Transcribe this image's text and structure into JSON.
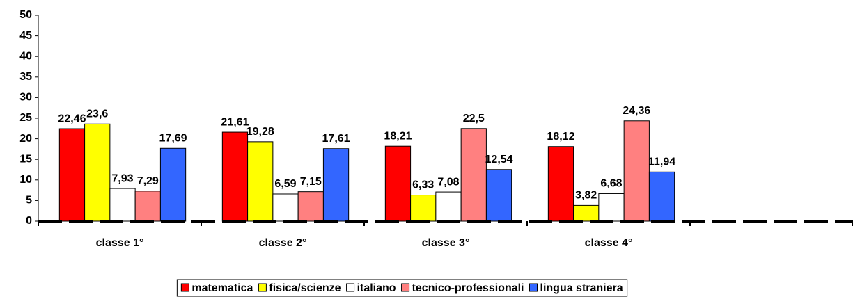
{
  "chart_data": {
    "type": "bar",
    "categories": [
      "classe 1°",
      "classe 2°",
      "classe 3°",
      "classe 4°",
      null
    ],
    "series": [
      {
        "name": "matematica",
        "color": "#ff0000",
        "values": [
          22.46,
          21.61,
          18.21,
          18.12,
          null
        ],
        "value_labels": [
          "22,46",
          "21,61",
          "18,21",
          "18,12",
          null
        ]
      },
      {
        "name": "fisica/scienze",
        "color": "#ffff00",
        "values": [
          23.6,
          19.28,
          6.33,
          3.82,
          null
        ],
        "value_labels": [
          "23,6",
          "19,28",
          "6,33",
          "3,82",
          null
        ]
      },
      {
        "name": "italiano",
        "color": "#ffffff",
        "values": [
          7.93,
          6.59,
          7.08,
          6.68,
          null
        ],
        "value_labels": [
          "7,93",
          "6,59",
          "7,08",
          "6,68",
          null
        ]
      },
      {
        "name": "tecnico-professionali",
        "color": "#ff8080",
        "values": [
          7.29,
          7.15,
          22.5,
          24.36,
          null
        ],
        "value_labels": [
          "7,29",
          "7,15",
          "22,5",
          "24,36",
          null
        ]
      },
      {
        "name": "lingua straniera",
        "color": "#3366ff",
        "values": [
          17.69,
          17.61,
          12.54,
          11.94,
          null
        ],
        "value_labels": [
          "17,69",
          "17,61",
          "12,54",
          "11,94",
          null
        ]
      }
    ],
    "ylim": [
      0,
      50
    ],
    "yticks": [
      0,
      5,
      10,
      15,
      20,
      25,
      30,
      35,
      40,
      45,
      50
    ],
    "grid": false,
    "legend": "bottom"
  }
}
